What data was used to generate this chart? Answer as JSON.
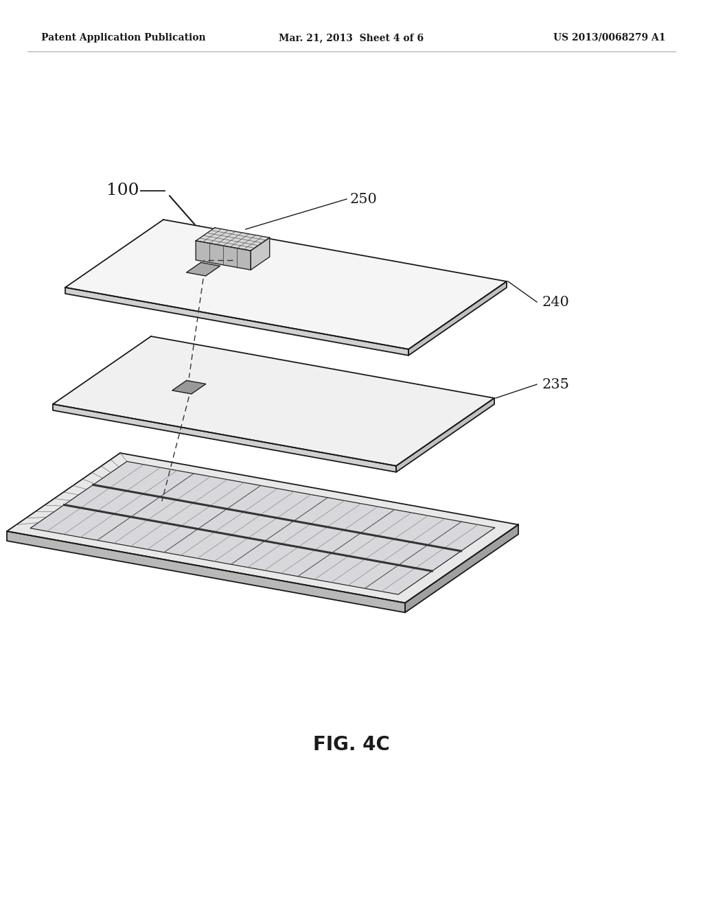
{
  "bg_color": "#ffffff",
  "text_color": "#1a1a1a",
  "header_left": "Patent Application Publication",
  "header_center": "Mar. 21, 2013  Sheet 4 of 6",
  "header_right": "US 2013/0068279 A1",
  "header_fontsize": 10,
  "fig_label": "FIG. 4C",
  "fig_label_fontsize": 20,
  "label_100": "100",
  "label_250": "250",
  "label_240": "240",
  "label_235": "235",
  "label_fontsize": 15,
  "line_color": "#1a1a1a",
  "fill_light": "#f5f5f5",
  "fill_mid": "#e8e8e8",
  "fill_edge": "#c0c0c0",
  "fill_edge2": "#d0d0d0"
}
